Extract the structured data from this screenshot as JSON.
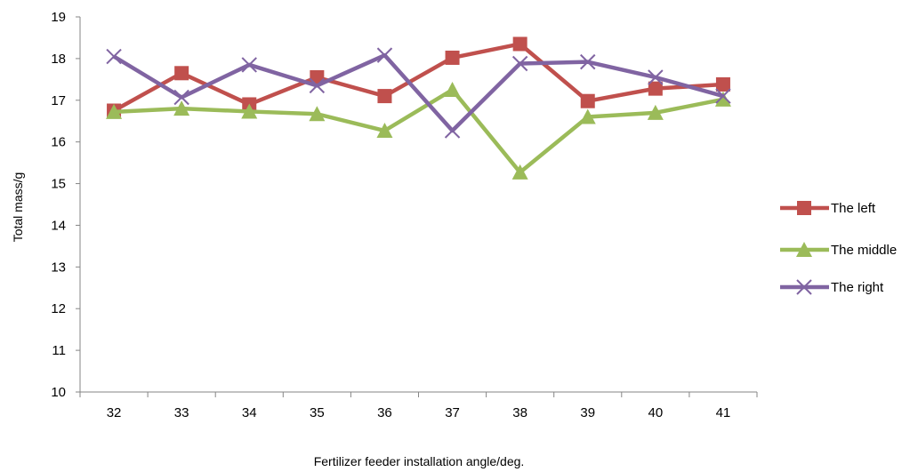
{
  "chart_data": {
    "type": "line",
    "title": "",
    "xlabel": "Fertilizer feeder installation angle/deg.",
    "ylabel": "Total mass/g",
    "ylim": [
      10,
      19
    ],
    "yticks": [
      10,
      11,
      12,
      13,
      14,
      15,
      16,
      17,
      18,
      19
    ],
    "categories": [
      "32",
      "33",
      "34",
      "35",
      "36",
      "37",
      "38",
      "39",
      "40",
      "41"
    ],
    "grid": false,
    "legend_position": "right",
    "series": [
      {
        "name": "The left",
        "color": "#c0504d",
        "marker": "square",
        "values": [
          16.75,
          17.65,
          16.9,
          17.55,
          17.1,
          18.02,
          18.35,
          16.98,
          17.28,
          17.38
        ]
      },
      {
        "name": "The middle",
        "color": "#9bbb59",
        "marker": "triangle",
        "values": [
          16.72,
          16.8,
          16.73,
          16.67,
          16.27,
          17.25,
          15.27,
          16.6,
          16.7,
          17.02
        ]
      },
      {
        "name": "The right",
        "color": "#8064a2",
        "marker": "x",
        "values": [
          18.05,
          17.07,
          17.85,
          17.35,
          18.08,
          16.27,
          17.88,
          17.92,
          17.55,
          17.1
        ]
      }
    ]
  }
}
